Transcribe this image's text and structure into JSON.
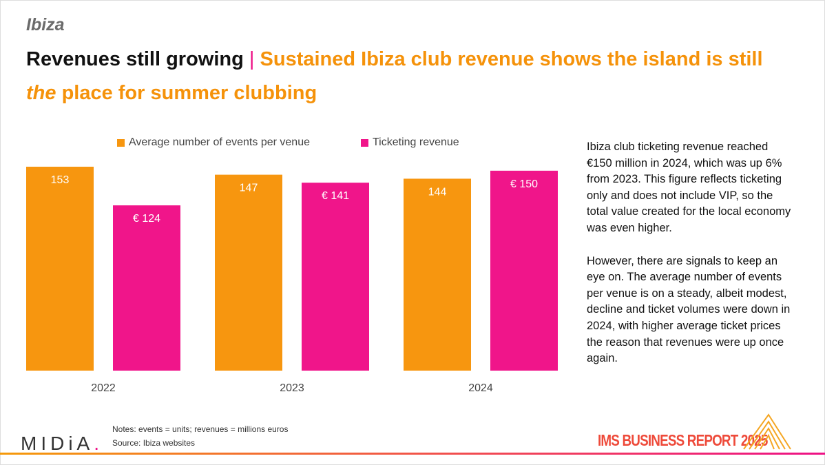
{
  "section": "Ibiza",
  "headline": {
    "part1": "Revenues still growing",
    "separator": "|",
    "part2": "Sustained Ibiza club revenue shows the island is still",
    "emphasis": "the",
    "part3": "place for summer clubbing"
  },
  "colors": {
    "events": "#f7960f",
    "revenue": "#f0158a",
    "accent_orange": "#f5920a",
    "accent_pink": "#ee1186"
  },
  "chart_data": {
    "type": "bar",
    "categories": [
      "2022",
      "2023",
      "2024"
    ],
    "series": [
      {
        "name": "Average number of events per venue",
        "color": "#f7960f",
        "values": [
          153,
          147,
          144
        ],
        "labels": [
          "153",
          "147",
          "144"
        ]
      },
      {
        "name": "Ticketing revenue",
        "color": "#f0158a",
        "values": [
          124,
          141,
          150
        ],
        "labels": [
          "€ 124",
          "€ 141",
          "€ 150"
        ]
      }
    ],
    "legend": "top",
    "grid": false,
    "ylim": [
      0,
      153
    ]
  },
  "commentary": {
    "p1": "Ibiza club ticketing revenue reached €150 million in 2024, which was up 6% from 2023. This figure reflects ticketing only and does not include VIP, so the total value created for the local economy was even higher.",
    "p2": "However, there are signals to keep an eye on. The average number of events per venue is on a steady, albeit modest, decline and ticket volumes were down in 2024, with higher average ticket prices the reason that revenues were up once again."
  },
  "notes": {
    "line1": "Notes: events = units; revenues = millions euros",
    "line2": "Source: Ibiza websites"
  },
  "logo": {
    "text": "MIDiA",
    "dot": "."
  },
  "report_title": "IMS BUSINESS REPORT 2025"
}
